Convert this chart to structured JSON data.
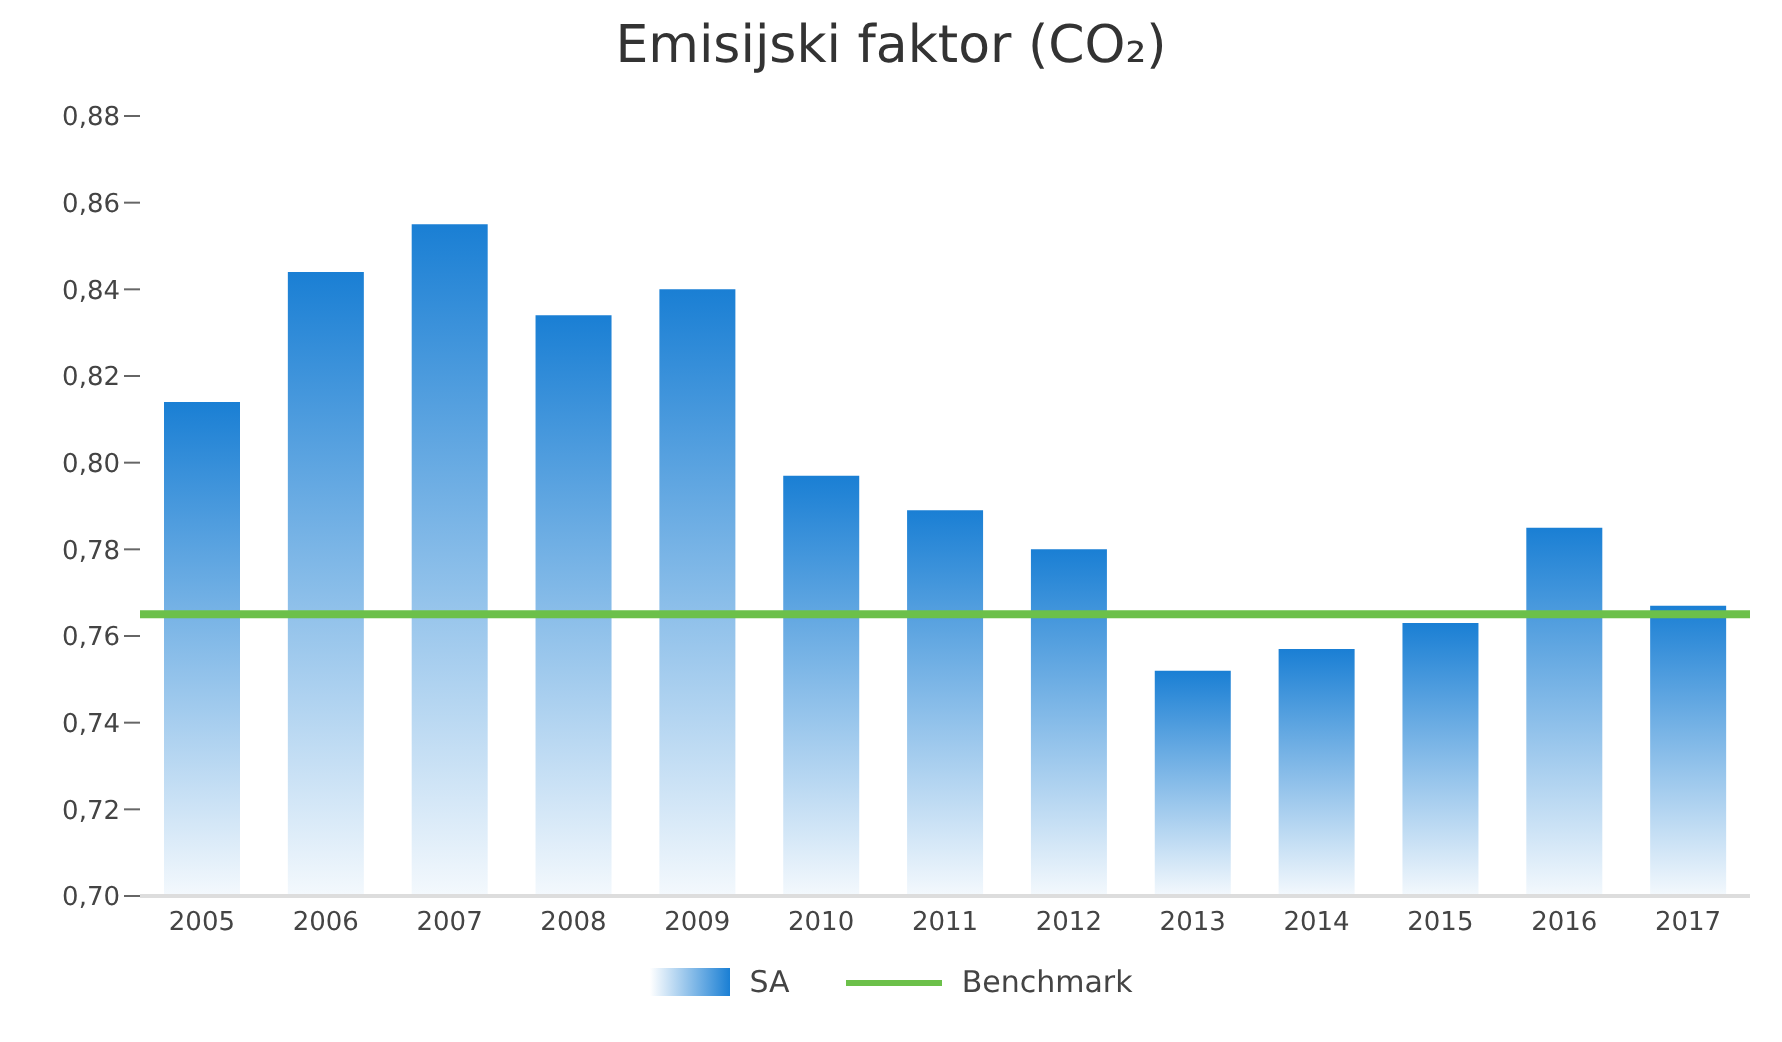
{
  "chart_data": {
    "type": "bar",
    "title": "Emisijski faktor (CO₂)",
    "categories": [
      "2005",
      "2006",
      "2007",
      "2008",
      "2009",
      "2010",
      "2011",
      "2012",
      "2013",
      "2014",
      "2015",
      "2016",
      "2017"
    ],
    "series": [
      {
        "name": "SA",
        "color": "#1a7fd4",
        "values": [
          0.814,
          0.844,
          0.855,
          0.834,
          0.84,
          0.797,
          0.789,
          0.78,
          0.752,
          0.757,
          0.763,
          0.785,
          0.767
        ]
      }
    ],
    "ylim": [
      0.7,
      0.88
    ],
    "yticks": [
      {
        "value": 0.7,
        "label": "0,70"
      },
      {
        "value": 0.72,
        "label": "0,72"
      },
      {
        "value": 0.74,
        "label": "0,74"
      },
      {
        "value": 0.76,
        "label": "0,76"
      },
      {
        "value": 0.78,
        "label": "0,78"
      },
      {
        "value": 0.8,
        "label": "0,80"
      },
      {
        "value": 0.82,
        "label": "0,82"
      },
      {
        "value": 0.84,
        "label": "0,84"
      },
      {
        "value": 0.86,
        "label": "0,86"
      },
      {
        "value": 0.88,
        "label": "0,88"
      }
    ],
    "ref_lines": [
      {
        "axis": "y",
        "value": 0.765,
        "label": "Benchmark",
        "color": "#6cc04a"
      }
    ],
    "grid": false,
    "legend": "bottom"
  }
}
